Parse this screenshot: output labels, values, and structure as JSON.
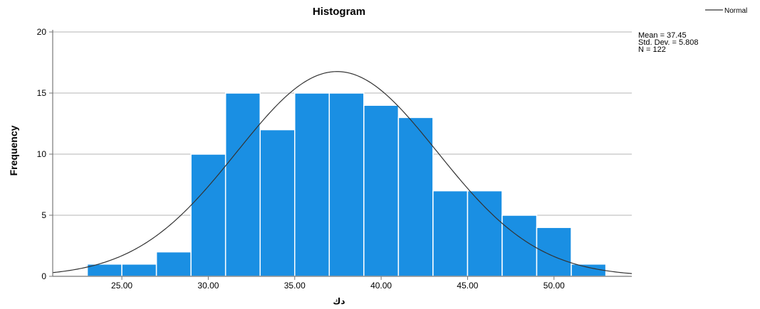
{
  "chart_data": {
    "type": "bar",
    "title": "Histogram",
    "xlabel": "دك",
    "ylabel": "Frequency",
    "bin_width": 2,
    "bins": [
      {
        "x0": 23,
        "x1": 25,
        "count": 1
      },
      {
        "x0": 25,
        "x1": 27,
        "count": 1
      },
      {
        "x0": 27,
        "x1": 29,
        "count": 2
      },
      {
        "x0": 29,
        "x1": 31,
        "count": 10
      },
      {
        "x0": 31,
        "x1": 33,
        "count": 15
      },
      {
        "x0": 33,
        "x1": 35,
        "count": 12
      },
      {
        "x0": 35,
        "x1": 37,
        "count": 15
      },
      {
        "x0": 37,
        "x1": 39,
        "count": 15
      },
      {
        "x0": 39,
        "x1": 41,
        "count": 14
      },
      {
        "x0": 41,
        "x1": 43,
        "count": 13
      },
      {
        "x0": 43,
        "x1": 45,
        "count": 7
      },
      {
        "x0": 45,
        "x1": 47,
        "count": 7
      },
      {
        "x0": 47,
        "x1": 49,
        "count": 5
      },
      {
        "x0": 49,
        "x1": 51,
        "count": 4
      },
      {
        "x0": 51,
        "x1": 53,
        "count": 1
      }
    ],
    "xticks": [
      25,
      30,
      35,
      40,
      45,
      50
    ],
    "xtick_labels": [
      "25.00",
      "30.00",
      "35.00",
      "40.00",
      "45.00",
      "50.00"
    ],
    "yticks": [
      0,
      5,
      10,
      15,
      20
    ],
    "ytick_labels": [
      "0",
      "5",
      "10",
      "15",
      "20"
    ],
    "xlim": [
      21,
      54.5
    ],
    "ylim": [
      0,
      20
    ],
    "grid": "horizontal",
    "bar_color": "#1a8fe3",
    "curve_color": "#333333",
    "normal_curve": {
      "mean": 37.45,
      "std": 5.808,
      "n": 122
    },
    "stats_text": [
      "Mean = 37.45",
      "Std. Dev. = 5.808",
      "N = 122"
    ],
    "legend": {
      "entries": [
        "Normal"
      ],
      "placement": "top-right"
    }
  }
}
